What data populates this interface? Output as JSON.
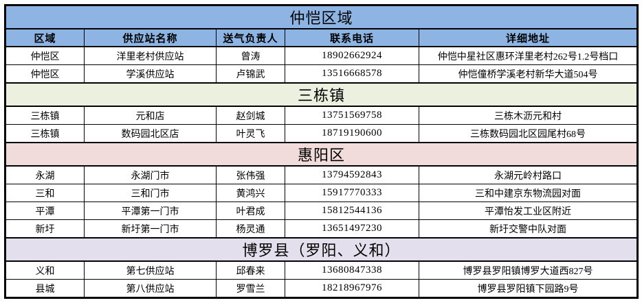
{
  "table": {
    "header_color": "#8DB4E2",
    "border_color": "#000000",
    "columns": [
      "区域",
      "供应站名称",
      "送气负责人",
      "联系电话",
      "详细地址"
    ],
    "column_keys": [
      "region",
      "station",
      "person",
      "phone",
      "address"
    ],
    "sections": [
      {
        "title": "仲恺区域",
        "color": "#8DB4E2",
        "show_header": true,
        "rows": [
          [
            "仲恺区",
            "洋里老村供应站",
            "曾涛",
            "18902662924",
            "仲恺中星社区惠环洋里老村262号1.2号档口"
          ],
          [
            "仲恺区",
            "学溪供应站",
            "卢锦武",
            "13516668578",
            "仲恺僮桥学溪老村新华大道504号"
          ]
        ]
      },
      {
        "title": "三栋镇",
        "color": "#EBF1DE",
        "show_header": false,
        "rows": [
          [
            "三栋镇",
            "元和店",
            "赵剑城",
            "13751569758",
            "三栋木沥元和村"
          ],
          [
            "三栋镇",
            "数码园北区店",
            "叶灵飞",
            "18719190600",
            "三栋数码园北区园尾村68号"
          ]
        ]
      },
      {
        "title": "惠阳区",
        "color": "#F2DCDB",
        "show_header": false,
        "rows": [
          [
            "永湖",
            "永湖门市",
            "张伟强",
            "13794592843",
            "永湖元岭村路口"
          ],
          [
            "三和",
            "三和门市",
            "黄鸿兴",
            "15917770333",
            "三和中建京东物流园对面"
          ],
          [
            "平潭",
            "平潭第一门市",
            "叶君成",
            "15812544136",
            "平潭怡发工业区附近"
          ],
          [
            "新圩",
            "新圩第一门市",
            "杨灵通",
            "13651497230",
            "新圩交警中队对面"
          ]
        ]
      },
      {
        "title": "博罗县（罗阳、义和）",
        "color": "#E4DFEC",
        "show_header": false,
        "rows": [
          [
            "义和",
            "第七供应站",
            "邱春来",
            "13680847338",
            "博罗县罗阳镇博罗大道西827号"
          ],
          [
            "县城",
            "第八供应站",
            "罗雪兰",
            "18218967976",
            "博罗县罗阳镇下园路9号"
          ]
        ]
      }
    ]
  }
}
